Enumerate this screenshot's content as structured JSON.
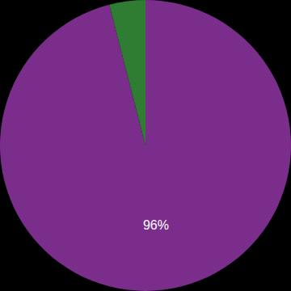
{
  "chart_data": {
    "type": "pie",
    "values": [
      96,
      4
    ],
    "value_labels": [
      "96%",
      null
    ],
    "colors": [
      "#7b2d8b",
      "#2e7d32"
    ]
  }
}
